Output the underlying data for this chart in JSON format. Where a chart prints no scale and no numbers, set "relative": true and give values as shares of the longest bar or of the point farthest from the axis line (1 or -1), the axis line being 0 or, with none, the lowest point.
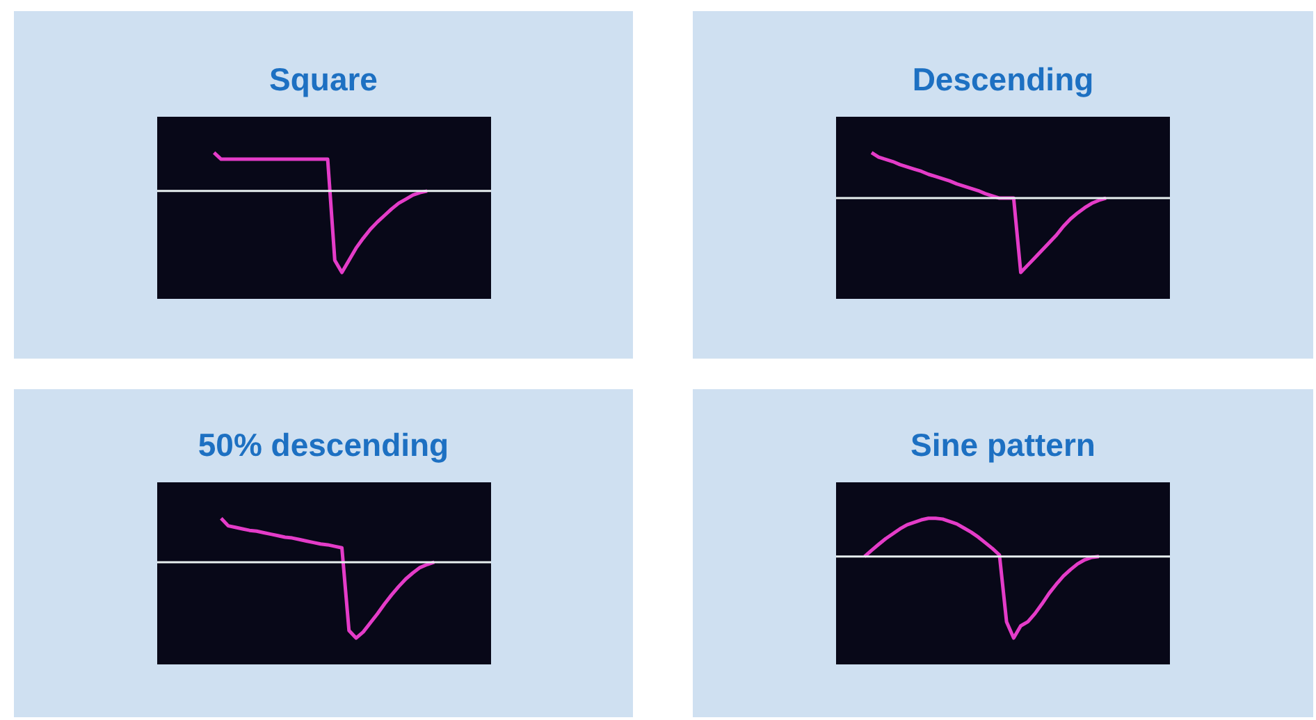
{
  "chart_data": [
    {
      "type": "line",
      "title": "Square",
      "relative": true,
      "categories": [
        null,
        null,
        null,
        null,
        null,
        null,
        null,
        null,
        null,
        null,
        null,
        null,
        null,
        null,
        null,
        null,
        null,
        null,
        null,
        null,
        null,
        null,
        null,
        null,
        null,
        null,
        null,
        null,
        null,
        null,
        null,
        null,
        null,
        null,
        null,
        null,
        null,
        null,
        null,
        null,
        null,
        null,
        null,
        null,
        null,
        null,
        null,
        null
      ],
      "series": [
        {
          "color": "#e43cc8",
          "values": [
            null,
            null,
            null,
            null,
            null,
            null,
            null,
            null,
            0.47,
            0.39,
            0.39,
            0.39,
            0.39,
            0.39,
            0.39,
            0.39,
            0.39,
            0.39,
            0.39,
            0.39,
            0.39,
            0.39,
            0.39,
            0.39,
            0.39,
            -0.85,
            -1,
            -0.85,
            -0.7,
            -0.58,
            -0.47,
            -0.38,
            -0.3,
            -0.22,
            -0.15,
            -0.1,
            -0.05,
            -0.02,
            0,
            null,
            null,
            null,
            null,
            null,
            null,
            null,
            null,
            null
          ]
        }
      ]
    },
    {
      "type": "line",
      "title": "Descending",
      "relative": true,
      "categories": [
        null,
        null,
        null,
        null,
        null,
        null,
        null,
        null,
        null,
        null,
        null,
        null,
        null,
        null,
        null,
        null,
        null,
        null,
        null,
        null,
        null,
        null,
        null,
        null,
        null,
        null,
        null,
        null,
        null,
        null,
        null,
        null,
        null,
        null,
        null,
        null,
        null,
        null,
        null,
        null,
        null,
        null,
        null,
        null,
        null,
        null,
        null,
        null
      ],
      "series": [
        {
          "color": "#e43cc8",
          "values": [
            null,
            null,
            null,
            null,
            null,
            0.61,
            0.55,
            0.52,
            0.49,
            0.45,
            0.42,
            0.39,
            0.36,
            0.32,
            0.29,
            0.26,
            0.23,
            0.19,
            0.16,
            0.13,
            0.1,
            0.06,
            0.03,
            0,
            0,
            0,
            -1,
            -0.9,
            -0.8,
            -0.7,
            -0.6,
            -0.5,
            -0.38,
            -0.28,
            -0.2,
            -0.13,
            -0.07,
            -0.03,
            0,
            null,
            null,
            null,
            null,
            null,
            null,
            null,
            null,
            null
          ]
        }
      ]
    },
    {
      "type": "line",
      "title": "50% descending",
      "relative": true,
      "categories": [
        null,
        null,
        null,
        null,
        null,
        null,
        null,
        null,
        null,
        null,
        null,
        null,
        null,
        null,
        null,
        null,
        null,
        null,
        null,
        null,
        null,
        null,
        null,
        null,
        null,
        null,
        null,
        null,
        null,
        null,
        null,
        null,
        null,
        null,
        null,
        null,
        null,
        null,
        null,
        null,
        null,
        null,
        null,
        null,
        null,
        null,
        null,
        null
      ],
      "series": [
        {
          "color": "#e43cc8",
          "values": [
            null,
            null,
            null,
            null,
            null,
            null,
            null,
            null,
            null,
            0.58,
            0.48,
            0.46,
            0.44,
            0.42,
            0.41,
            0.39,
            0.37,
            0.35,
            0.33,
            0.32,
            0.3,
            0.28,
            0.26,
            0.24,
            0.23,
            0.21,
            0.19,
            -0.9,
            -1,
            -0.92,
            -0.8,
            -0.68,
            -0.55,
            -0.43,
            -0.32,
            -0.22,
            -0.14,
            -0.07,
            -0.03,
            0,
            null,
            null,
            null,
            null,
            null,
            null,
            null,
            null
          ]
        }
      ]
    },
    {
      "type": "line",
      "title": "Sine pattern",
      "relative": true,
      "categories": [
        null,
        null,
        null,
        null,
        null,
        null,
        null,
        null,
        null,
        null,
        null,
        null,
        null,
        null,
        null,
        null,
        null,
        null,
        null,
        null,
        null,
        null,
        null,
        null,
        null,
        null,
        null,
        null,
        null,
        null,
        null,
        null,
        null,
        null,
        null,
        null,
        null,
        null,
        null,
        null,
        null,
        null,
        null,
        null,
        null,
        null,
        null,
        null
      ],
      "series": [
        {
          "color": "#e43cc8",
          "values": [
            null,
            null,
            null,
            null,
            0,
            0.077,
            0.15,
            0.22,
            0.28,
            0.34,
            0.39,
            0.42,
            0.45,
            0.47,
            0.47,
            0.46,
            0.43,
            0.4,
            0.35,
            0.3,
            0.24,
            0.17,
            0.1,
            0.02,
            -0.8,
            -1,
            -0.85,
            -0.8,
            -0.7,
            -0.58,
            -0.45,
            -0.34,
            -0.24,
            -0.16,
            -0.09,
            -0.04,
            -0.01,
            0,
            null,
            null,
            null,
            null,
            null,
            null,
            null,
            null,
            null,
            null
          ]
        }
      ]
    }
  ]
}
